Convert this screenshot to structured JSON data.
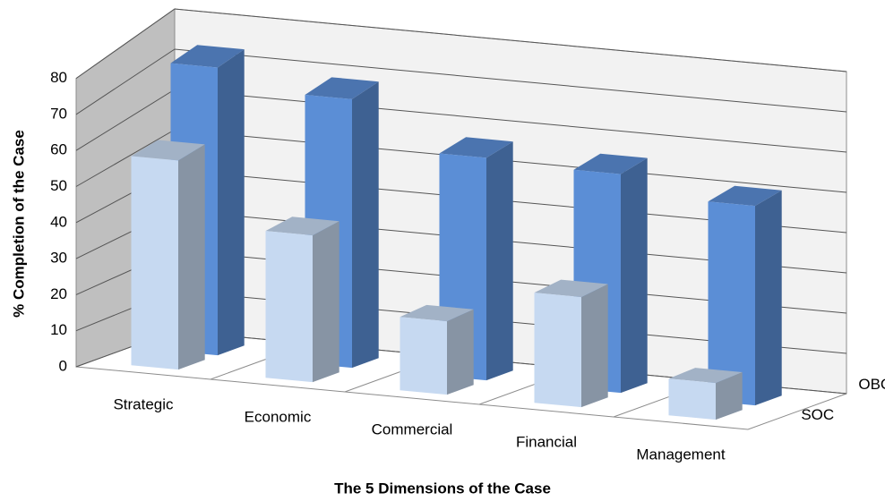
{
  "chart_data": {
    "type": "bar3d",
    "x_label": "The 5 Dimensions of the Case",
    "y_label": "% Completion of the Case",
    "categories": [
      "Strategic",
      "Economic",
      "Commercial",
      "Financial",
      "Management"
    ],
    "series": [
      {
        "name": "SOC",
        "color": "#c6d9f1",
        "values": [
          57,
          40,
          20,
          30,
          10
        ]
      },
      {
        "name": "OBC",
        "color": "#5b8ed6",
        "values": [
          75,
          70,
          58,
          57,
          52
        ]
      }
    ],
    "ylim": [
      0,
      80
    ],
    "yticks": [
      0,
      10,
      20,
      30,
      40,
      50,
      60,
      70,
      80
    ],
    "grid": true
  }
}
